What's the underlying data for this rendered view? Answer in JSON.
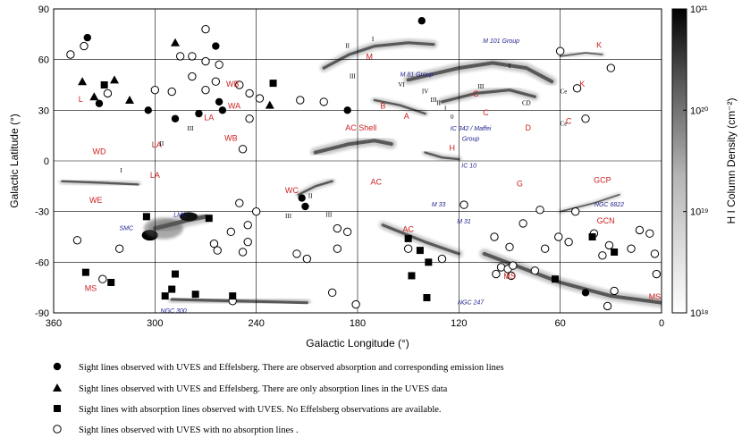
{
  "chart_data": {
    "type": "scatter",
    "title": "",
    "xlabel": "Galactic Longitude (°)",
    "ylabel": "Galactic Latitude (°)",
    "xlim": [
      360,
      0
    ],
    "ylim": [
      -90,
      90
    ],
    "x_reversed": true,
    "xticks": [
      360,
      300,
      240,
      180,
      120,
      60,
      0
    ],
    "yticks": [
      90,
      60,
      30,
      0,
      -30,
      -60,
      -90
    ],
    "grid": true,
    "colorbar": {
      "label": "H I Column Density (cm⁻²)",
      "scale": "log",
      "range": [
        1e+18,
        1e+21
      ],
      "ticks": [
        "10²¹",
        "10²⁰",
        "10¹⁹",
        "10¹⁸"
      ],
      "tick_values": [
        21,
        20,
        19,
        18
      ]
    },
    "hi_features": [
      {
        "name": "Magellanic Stream tail",
        "l": [
          290,
          210
        ],
        "b": [
          -82,
          -84
        ],
        "width": 4
      },
      {
        "name": "Magellanic Stream east",
        "l": [
          105,
          60,
          30,
          0
        ],
        "b": [
          -55,
          -72,
          -80,
          -84
        ],
        "width": 5
      },
      {
        "name": "Magellanic Bridge",
        "l": [
          300,
          280,
          270
        ],
        "b": [
          -40,
          -35,
          -33
        ],
        "width": 6
      },
      {
        "name": "Complex C upper",
        "l": [
          150,
          120,
          100,
          80,
          65
        ],
        "b": [
          48,
          55,
          58,
          55,
          47
        ],
        "width": 5
      },
      {
        "name": "Complex C lower",
        "l": [
          130,
          110,
          90,
          75
        ],
        "b": [
          35,
          40,
          42,
          38
        ],
        "width": 4
      },
      {
        "name": "Complex A",
        "l": [
          170,
          155,
          140
        ],
        "b": [
          36,
          33,
          28
        ],
        "width": 3
      },
      {
        "name": "Complex M arc",
        "l": [
          200,
          185,
          170,
          150,
          135
        ],
        "b": [
          55,
          63,
          68,
          70,
          69
        ],
        "width": 4
      },
      {
        "name": "Complex H",
        "l": [
          140,
          130,
          120
        ],
        "b": [
          5,
          2,
          1
        ],
        "width": 3
      },
      {
        "name": "AC shell",
        "l": [
          205,
          185,
          170,
          160
        ],
        "b": [
          5,
          10,
          12,
          10
        ],
        "width": 5
      },
      {
        "name": "AC south",
        "l": [
          165,
          140,
          120
        ],
        "b": [
          -38,
          -48,
          -55
        ],
        "width": 4
      },
      {
        "name": "WC",
        "l": [
          215,
          205,
          195
        ],
        "b": [
          -20,
          -15,
          -12
        ],
        "width": 3
      },
      {
        "name": "WD",
        "l": [
          355,
          330,
          310
        ],
        "b": [
          -12,
          -13,
          -14
        ],
        "width": 3
      },
      {
        "name": "Complex K",
        "l": [
          60,
          45,
          35
        ],
        "b": [
          62,
          64,
          63
        ],
        "width": 2
      },
      {
        "name": "GCP",
        "l": [
          60,
          40,
          25
        ],
        "b": [
          -30,
          -25,
          -20
        ],
        "width": 2
      }
    ],
    "series": [
      {
        "name": "Sight lines observed with UVES  and Effelsberg. There are observed absorption and corresponding emission lines",
        "marker": "filled-circle",
        "points": [
          [
            142,
            83
          ],
          [
            340,
            73
          ],
          [
            264,
            68
          ],
          [
            333,
            34
          ],
          [
            262,
            35
          ],
          [
            304,
            30
          ],
          [
            260,
            30
          ],
          [
            274,
            28
          ],
          [
            288,
            25
          ],
          [
            186,
            30
          ],
          [
            213,
            -22
          ],
          [
            211,
            -27
          ],
          [
            45,
            -78
          ]
        ]
      },
      {
        "name": "Sight lines observed with UVES  and Effelsberg. There are only absorption lines in the UVES data",
        "marker": "filled-triangle",
        "points": [
          [
            288,
            70
          ],
          [
            324,
            48
          ],
          [
            343,
            47
          ],
          [
            336,
            38
          ],
          [
            315,
            36
          ],
          [
            232,
            33
          ]
        ]
      },
      {
        "name": "Sight lines with absorption lines observed with UVES. No Effelsberg observations are available.",
        "marker": "filled-square",
        "points": [
          [
            330,
            45
          ],
          [
            230,
            46
          ],
          [
            305,
            -33
          ],
          [
            268,
            -34
          ],
          [
            150,
            -46
          ],
          [
            143,
            -53
          ],
          [
            138,
            -60
          ],
          [
            148,
            -68
          ],
          [
            139,
            -81
          ],
          [
            341,
            -66
          ],
          [
            326,
            -72
          ],
          [
            288,
            -67
          ],
          [
            290,
            -76
          ],
          [
            294,
            -80
          ],
          [
            276,
            -79
          ],
          [
            254,
            -80
          ],
          [
            41,
            -45
          ],
          [
            28,
            -54
          ],
          [
            63,
            -70
          ]
        ]
      },
      {
        "name": "Sight lines observed with UVES with no absorption lines .",
        "marker": "open-circle",
        "points": [
          [
            270,
            78
          ],
          [
            342,
            68
          ],
          [
            350,
            63
          ],
          [
            285,
            62
          ],
          [
            278,
            62
          ],
          [
            270,
            59
          ],
          [
            262,
            57
          ],
          [
            328,
            40
          ],
          [
            300,
            42
          ],
          [
            290,
            41
          ],
          [
            278,
            50
          ],
          [
            270,
            42
          ],
          [
            264,
            47
          ],
          [
            250,
            45
          ],
          [
            244,
            40
          ],
          [
            238,
            37
          ],
          [
            214,
            36
          ],
          [
            200,
            35
          ],
          [
            60,
            65
          ],
          [
            30,
            55
          ],
          [
            50,
            43
          ],
          [
            45,
            25
          ],
          [
            244,
            25
          ],
          [
            248,
            7
          ],
          [
            250,
            -25
          ],
          [
            240,
            -30
          ],
          [
            245,
            -38
          ],
          [
            255,
            -42
          ],
          [
            245,
            -48
          ],
          [
            265,
            -49
          ],
          [
            263,
            -53
          ],
          [
            248,
            -54
          ],
          [
            216,
            -55
          ],
          [
            192,
            -52
          ],
          [
            192,
            -40
          ],
          [
            210,
            -58
          ],
          [
            195,
            -78
          ],
          [
            181,
            -85
          ],
          [
            346,
            -47
          ],
          [
            321,
            -52
          ],
          [
            331,
            -70
          ],
          [
            254,
            -83
          ],
          [
            186,
            -42
          ],
          [
            150,
            -52
          ],
          [
            130,
            -58
          ],
          [
            117,
            -26
          ],
          [
            99,
            -45
          ],
          [
            90,
            -51
          ],
          [
            82,
            -37
          ],
          [
            72,
            -29
          ],
          [
            61,
            -45
          ],
          [
            55,
            -48
          ],
          [
            95,
            -63
          ],
          [
            91,
            -64
          ],
          [
            88,
            -62
          ],
          [
            98,
            -67
          ],
          [
            89,
            -68
          ],
          [
            75,
            -65
          ],
          [
            69,
            -52
          ],
          [
            51,
            -30
          ],
          [
            40,
            -43
          ],
          [
            31,
            -50
          ],
          [
            35,
            -56
          ],
          [
            28,
            -77
          ],
          [
            32,
            -86
          ],
          [
            18,
            -52
          ],
          [
            13,
            -41
          ],
          [
            7,
            -43
          ],
          [
            3,
            -67
          ],
          [
            4,
            -55
          ]
        ]
      }
    ],
    "region_labels": [
      {
        "text": "K",
        "l": 37,
        "b": 67
      },
      {
        "text": "M",
        "l": 173,
        "b": 60
      },
      {
        "text": "C",
        "l": 110,
        "b": 38
      },
      {
        "text": "C",
        "l": 104,
        "b": 27
      },
      {
        "text": "K",
        "l": 47,
        "b": 44
      },
      {
        "text": "C",
        "l": 55,
        "b": 22
      },
      {
        "text": "D",
        "l": 79,
        "b": 18
      },
      {
        "text": "B",
        "l": 165,
        "b": 31
      },
      {
        "text": "A",
        "l": 151,
        "b": 25
      },
      {
        "text": "AC Shell",
        "l": 178,
        "b": 18
      },
      {
        "text": "H",
        "l": 124,
        "b": 6
      },
      {
        "text": "L",
        "l": 344,
        "b": 35
      },
      {
        "text": "WB",
        "l": 254,
        "b": 44
      },
      {
        "text": "WA",
        "l": 253,
        "b": 31
      },
      {
        "text": "LA",
        "l": 268,
        "b": 24
      },
      {
        "text": "WB",
        "l": 255,
        "b": 12
      },
      {
        "text": "LA",
        "l": 299,
        "b": 8
      },
      {
        "text": "WD",
        "l": 333,
        "b": 4
      },
      {
        "text": "LA",
        "l": 300,
        "b": -10
      },
      {
        "text": "WE",
        "l": 335,
        "b": -25
      },
      {
        "text": "WC",
        "l": 219,
        "b": -19
      },
      {
        "text": "AC",
        "l": 169,
        "b": -14
      },
      {
        "text": "G",
        "l": 84,
        "b": -15
      },
      {
        "text": "GCP",
        "l": 35,
        "b": -13
      },
      {
        "text": "AC",
        "l": 150,
        "b": -42
      },
      {
        "text": "GCN",
        "l": 33,
        "b": -37
      },
      {
        "text": "MS",
        "l": 338,
        "b": -77
      },
      {
        "text": "MS",
        "l": 90,
        "b": -70
      },
      {
        "text": "MS",
        "l": 4,
        "b": -82
      }
    ],
    "galaxy_labels": [
      {
        "text": "M 101 Group",
        "l": 95,
        "b": 70
      },
      {
        "text": "M 81 Group",
        "l": 145,
        "b": 50
      },
      {
        "text": "IC 342 / Maffei",
        "l": 113,
        "b": 18
      },
      {
        "text": "Group",
        "l": 113,
        "b": 12
      },
      {
        "text": "IC 10",
        "l": 114,
        "b": -4
      },
      {
        "text": "M 33",
        "l": 132,
        "b": -27
      },
      {
        "text": "M 31",
        "l": 117,
        "b": -37
      },
      {
        "text": "SMC",
        "l": 317,
        "b": -41
      },
      {
        "text": "LMC",
        "l": 285,
        "b": -33
      },
      {
        "text": "NGC 6822",
        "l": 31,
        "b": -27
      },
      {
        "text": "NGC 247",
        "l": 113,
        "b": -85
      },
      {
        "text": "NGC 300",
        "l": 289,
        "b": -90
      }
    ],
    "roman_labels": [
      {
        "text": "II",
        "l": 186,
        "b": 67
      },
      {
        "text": "III",
        "l": 183,
        "b": 49
      },
      {
        "text": "I",
        "l": 171,
        "b": 71
      },
      {
        "text": "VI",
        "l": 154,
        "b": 44
      },
      {
        "text": "IV",
        "l": 140,
        "b": 40
      },
      {
        "text": "III",
        "l": 135,
        "b": 35
      },
      {
        "text": "II",
        "l": 132,
        "b": 33
      },
      {
        "text": "I",
        "l": 128,
        "b": 30
      },
      {
        "text": "0",
        "l": 124,
        "b": 25
      },
      {
        "text": "III",
        "l": 107,
        "b": 43
      },
      {
        "text": "I",
        "l": 90,
        "b": 55
      },
      {
        "text": "CD",
        "l": 80,
        "b": 33
      },
      {
        "text": "Ce",
        "l": 58,
        "b": 40
      },
      {
        "text": "Ce",
        "l": 58,
        "b": 21
      },
      {
        "text": "III",
        "l": 279,
        "b": 18
      },
      {
        "text": "II",
        "l": 296,
        "b": 9
      },
      {
        "text": "I",
        "l": 320,
        "b": -7
      },
      {
        "text": "II",
        "l": 208,
        "b": -22
      },
      {
        "text": "III",
        "l": 221,
        "b": -34
      },
      {
        "text": "III",
        "l": 197,
        "b": -33
      }
    ]
  }
}
